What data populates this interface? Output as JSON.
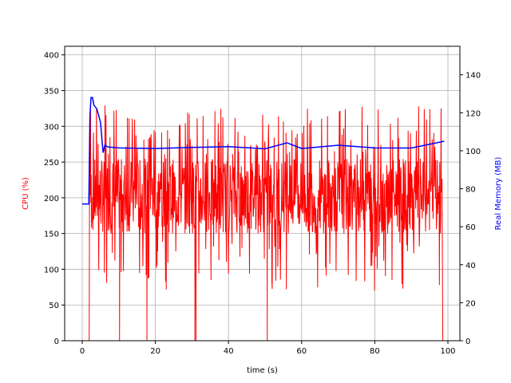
{
  "chart_data": {
    "type": "line",
    "title": "",
    "xlabel": "time (s)",
    "ylabel": "CPU (%)",
    "ylabel_right": "Real Memory (MB)",
    "xlim": [
      -5,
      104
    ],
    "ylim": [
      0,
      412
    ],
    "ylim_right": [
      0,
      155
    ],
    "grid": true,
    "x_ticks": [
      "0",
      "20",
      "40",
      "60",
      "80",
      "100"
    ],
    "y_ticks": [
      "0",
      "50",
      "100",
      "150",
      "200",
      "250",
      "300",
      "350",
      "400"
    ],
    "y_ticks_right": [
      "0",
      "20",
      "40",
      "60",
      "80",
      "100",
      "120",
      "140"
    ],
    "series": [
      {
        "name": "CPU (%)",
        "axis": "left",
        "color": "#ff0000",
        "description": "Highly oscillating between ~80 and ~300, occasional drops to 0 and spikes to ~345",
        "x": [
          0,
          1.9,
          2.0,
          2.5,
          3,
          5,
          7,
          10,
          10.2,
          15,
          17.5,
          17.7,
          20,
          30,
          30.8,
          31,
          40,
          50,
          50.5,
          50.7,
          60,
          70,
          80,
          90,
          98,
          98.5,
          98.7
        ],
        "values": [
          0,
          0,
          265,
          80,
          320,
          200,
          345,
          240,
          0,
          250,
          320,
          0,
          210,
          300,
          0,
          220,
          320,
          240,
          0,
          220,
          325,
          230,
          320,
          250,
          300,
          0,
          0
        ],
        "band_low": 150,
        "band_high": 255
      },
      {
        "name": "Real Memory (MB)",
        "axis": "right",
        "color": "#0000ff",
        "x": [
          0,
          1.8,
          2.1,
          2.4,
          2.8,
          3.2,
          4,
          5,
          5.7,
          6.2,
          7,
          10,
          20,
          30,
          40,
          50,
          56,
          60,
          70,
          80,
          90,
          99
        ],
        "values": [
          72,
          72,
          118,
          128,
          128,
          124,
          122,
          115,
          99,
          103,
          102,
          102,
          102,
          102,
          102,
          102,
          105,
          102,
          102,
          102,
          102,
          105
        ]
      }
    ]
  }
}
